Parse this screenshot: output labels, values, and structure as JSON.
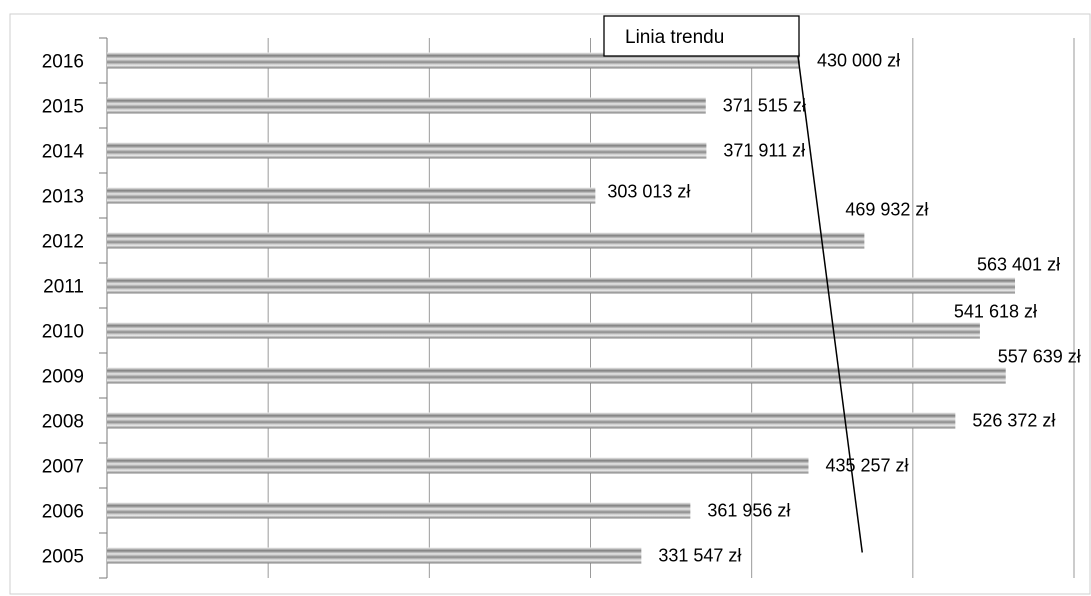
{
  "chart_data": {
    "type": "bar",
    "orientation": "horizontal",
    "categories": [
      "2016",
      "2015",
      "2014",
      "2013",
      "2012",
      "2011",
      "2010",
      "2009",
      "2008",
      "2007",
      "2006",
      "2005"
    ],
    "values": [
      430000,
      371515,
      371911,
      303013,
      469932,
      563401,
      541618,
      557639,
      526372,
      435257,
      361956,
      331547
    ],
    "data_labels": [
      "430 000 zł",
      "371 515 zł",
      "371 911 zł",
      "303 013 zł",
      "469 932 zł",
      "563 401 zł",
      "541 618 zł",
      "557 639 zł",
      "526 372 zł",
      "435 257 zł",
      "361 956 zł",
      "331 547 zł"
    ],
    "xlim": [
      0,
      600000
    ],
    "grid": "vertical",
    "x_axis_labels_visible": false,
    "annotation": {
      "label": "Linia trendu",
      "from": {
        "category": "2016",
        "value": 430000
      },
      "to": {
        "category": "2005",
        "value": 450000
      }
    },
    "colors": {
      "bar_light": "#e4e4e4",
      "bar_dark": "#8c8c8c",
      "grid": "#9a9a9a",
      "text": "#000000"
    }
  }
}
